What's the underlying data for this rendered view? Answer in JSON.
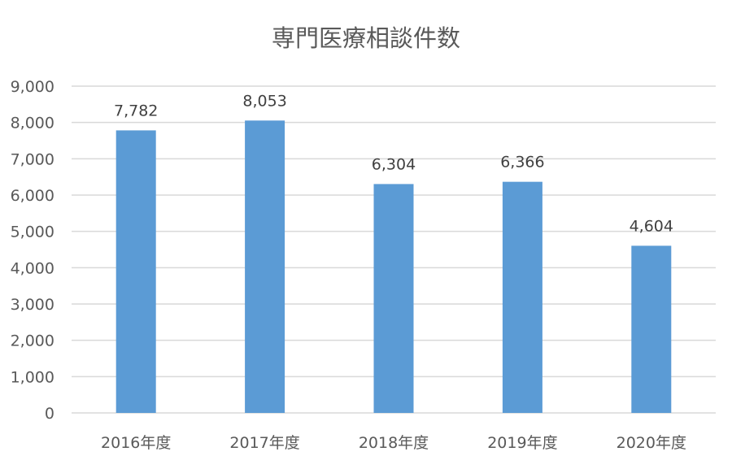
{
  "chart_data": {
    "type": "bar",
    "title": "専門医療相談件数",
    "categories": [
      "2016年度",
      "2017年度",
      "2018年度",
      "2019年度",
      "2020年度"
    ],
    "values": [
      7782,
      8053,
      6304,
      6366,
      4604
    ],
    "data_labels": [
      "7,782",
      "8,053",
      "6,304",
      "6,366",
      "4,604"
    ],
    "xlabel": "",
    "ylabel": "",
    "ylim": [
      0,
      9000
    ],
    "yticks": [
      0,
      1000,
      2000,
      3000,
      4000,
      5000,
      6000,
      7000,
      8000,
      9000
    ],
    "ytick_labels": [
      "0",
      "1,000",
      "2,000",
      "3,000",
      "4,000",
      "5,000",
      "6,000",
      "7,000",
      "8,000",
      "9,000"
    ],
    "grid": true,
    "legend": "none",
    "colors": {
      "bar": "#5b9bd5",
      "grid": "#d9d9d9",
      "text": "#595959",
      "label": "#404040"
    }
  }
}
